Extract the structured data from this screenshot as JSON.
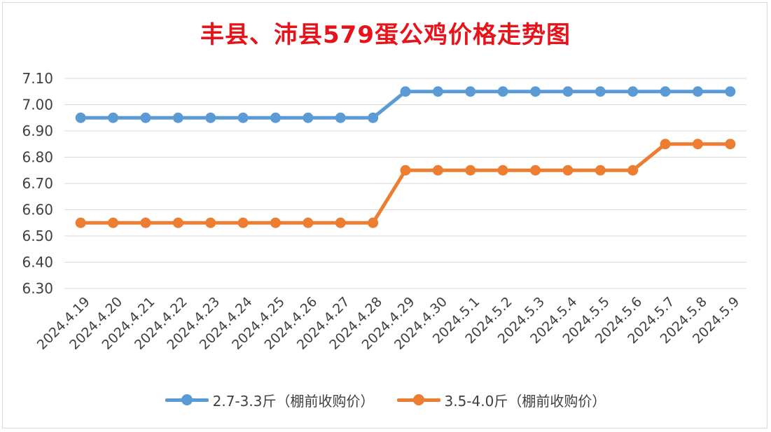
{
  "chart_data": {
    "type": "line",
    "title": "丰县、沛县579蛋公鸡价格走势图",
    "categories": [
      "2024.4.19",
      "2024.4.20",
      "2024.4.21",
      "2024.4.22",
      "2024.4.23",
      "2024.4.24",
      "2024.4.25",
      "2024.4.26",
      "2024.4.27",
      "2024.4.28",
      "2024.4.29",
      "2024.4.30",
      "2024.5.1",
      "2024.5.2",
      "2024.5.3",
      "2024.5.4",
      "2024.5.5",
      "2024.5.6",
      "2024.5.7",
      "2024.5.8",
      "2024.5.9"
    ],
    "yticks": [
      "6.30",
      "6.40",
      "6.50",
      "6.60",
      "6.70",
      "6.80",
      "6.90",
      "7.00",
      "7.10"
    ],
    "ylim": [
      6.3,
      7.1
    ],
    "grid": true,
    "legend_position": "bottom",
    "series": [
      {
        "name": "2.7-3.3斤（棚前收购价）",
        "color": "#5b9bd5",
        "values": [
          6.95,
          6.95,
          6.95,
          6.95,
          6.95,
          6.95,
          6.95,
          6.95,
          6.95,
          6.95,
          7.05,
          7.05,
          7.05,
          7.05,
          7.05,
          7.05,
          7.05,
          7.05,
          7.05,
          7.05,
          7.05
        ]
      },
      {
        "name": "3.5-4.0斤（棚前收购价）",
        "color": "#ed7d31",
        "values": [
          6.55,
          6.55,
          6.55,
          6.55,
          6.55,
          6.55,
          6.55,
          6.55,
          6.55,
          6.55,
          6.75,
          6.75,
          6.75,
          6.75,
          6.75,
          6.75,
          6.75,
          6.75,
          6.85,
          6.85,
          6.85
        ]
      }
    ]
  }
}
